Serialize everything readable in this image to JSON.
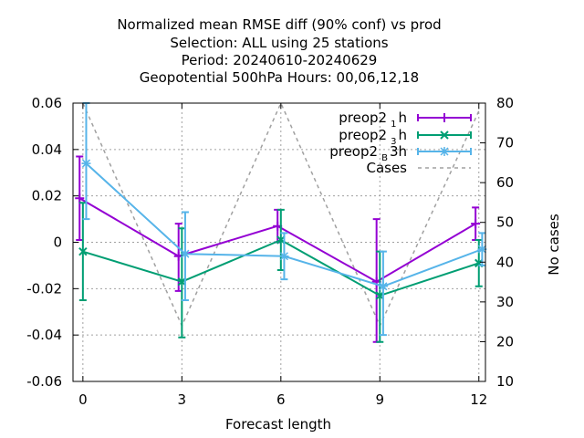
{
  "chart_data": {
    "type": "line",
    "title_lines": [
      "Normalized mean RMSE diff (90% conf) vs prod",
      "Selection: ALL using    25 stations",
      "Period: 20240610-20240629",
      "Geopotential 500hPa   Hours:  00,06,12,18"
    ],
    "xlabel": "Forecast length",
    "ylabel_right": "No cases",
    "x_ticks": [
      "0",
      "3",
      "6",
      "9",
      "12"
    ],
    "y_ticks": [
      "0.06",
      "0.04",
      "0.02",
      "0",
      "-0.02",
      "-0.04",
      "-0.06"
    ],
    "y2_ticks": [
      "80",
      "70",
      "60",
      "50",
      "40",
      "30",
      "20",
      "10"
    ],
    "xlim": [
      -0.3,
      12.2
    ],
    "ylim": [
      -0.06,
      0.06
    ],
    "y2lim": [
      10,
      80
    ],
    "grid": true,
    "legend_position": "top-right",
    "series": [
      {
        "name": "preop2 1h",
        "legend_main": "preop2",
        "legend_sub": "1",
        "legend_tail": "h",
        "color": "#9400d3",
        "marker": "plus",
        "x": [
          -0.1,
          2.9,
          5.9,
          8.9,
          11.9
        ],
        "y": [
          0.019,
          -0.006,
          0.007,
          -0.017,
          0.008
        ],
        "err_low": [
          0.001,
          -0.021,
          0.0,
          -0.043,
          0.001
        ],
        "err_high": [
          0.037,
          0.008,
          0.014,
          0.01,
          0.015
        ]
      },
      {
        "name": "preop2 3h",
        "legend_main": "preop2",
        "legend_sub": "3",
        "legend_tail": "h",
        "color": "#009e73",
        "marker": "x",
        "x": [
          0.0,
          3.0,
          6.0,
          9.0,
          12.0
        ],
        "y": [
          -0.004,
          -0.017,
          0.001,
          -0.023,
          -0.009
        ],
        "err_low": [
          -0.025,
          -0.041,
          -0.012,
          -0.043,
          -0.019
        ],
        "err_high": [
          0.017,
          0.006,
          0.014,
          -0.004,
          0.001
        ]
      },
      {
        "name": "preop2 B3h",
        "legend_main": "preop2",
        "legend_sub": "B",
        "legend_tail": "3h",
        "color": "#56b4e9",
        "marker": "star",
        "x": [
          0.1,
          3.1,
          6.1,
          9.1,
          12.1
        ],
        "y": [
          0.034,
          -0.005,
          -0.006,
          -0.019,
          -0.003
        ],
        "err_low": [
          0.01,
          -0.025,
          -0.016,
          -0.04,
          -0.01
        ],
        "err_high": [
          0.06,
          0.013,
          0.004,
          -0.004,
          0.004
        ]
      },
      {
        "name": "Cases",
        "legend_main": "Cases",
        "legend_sub": "",
        "legend_tail": "",
        "color": "#a0a0a0",
        "style": "dashed",
        "axis": "y2",
        "x": [
          0,
          3,
          6,
          9,
          12
        ],
        "y": [
          80,
          24,
          80,
          24,
          78
        ]
      }
    ]
  }
}
